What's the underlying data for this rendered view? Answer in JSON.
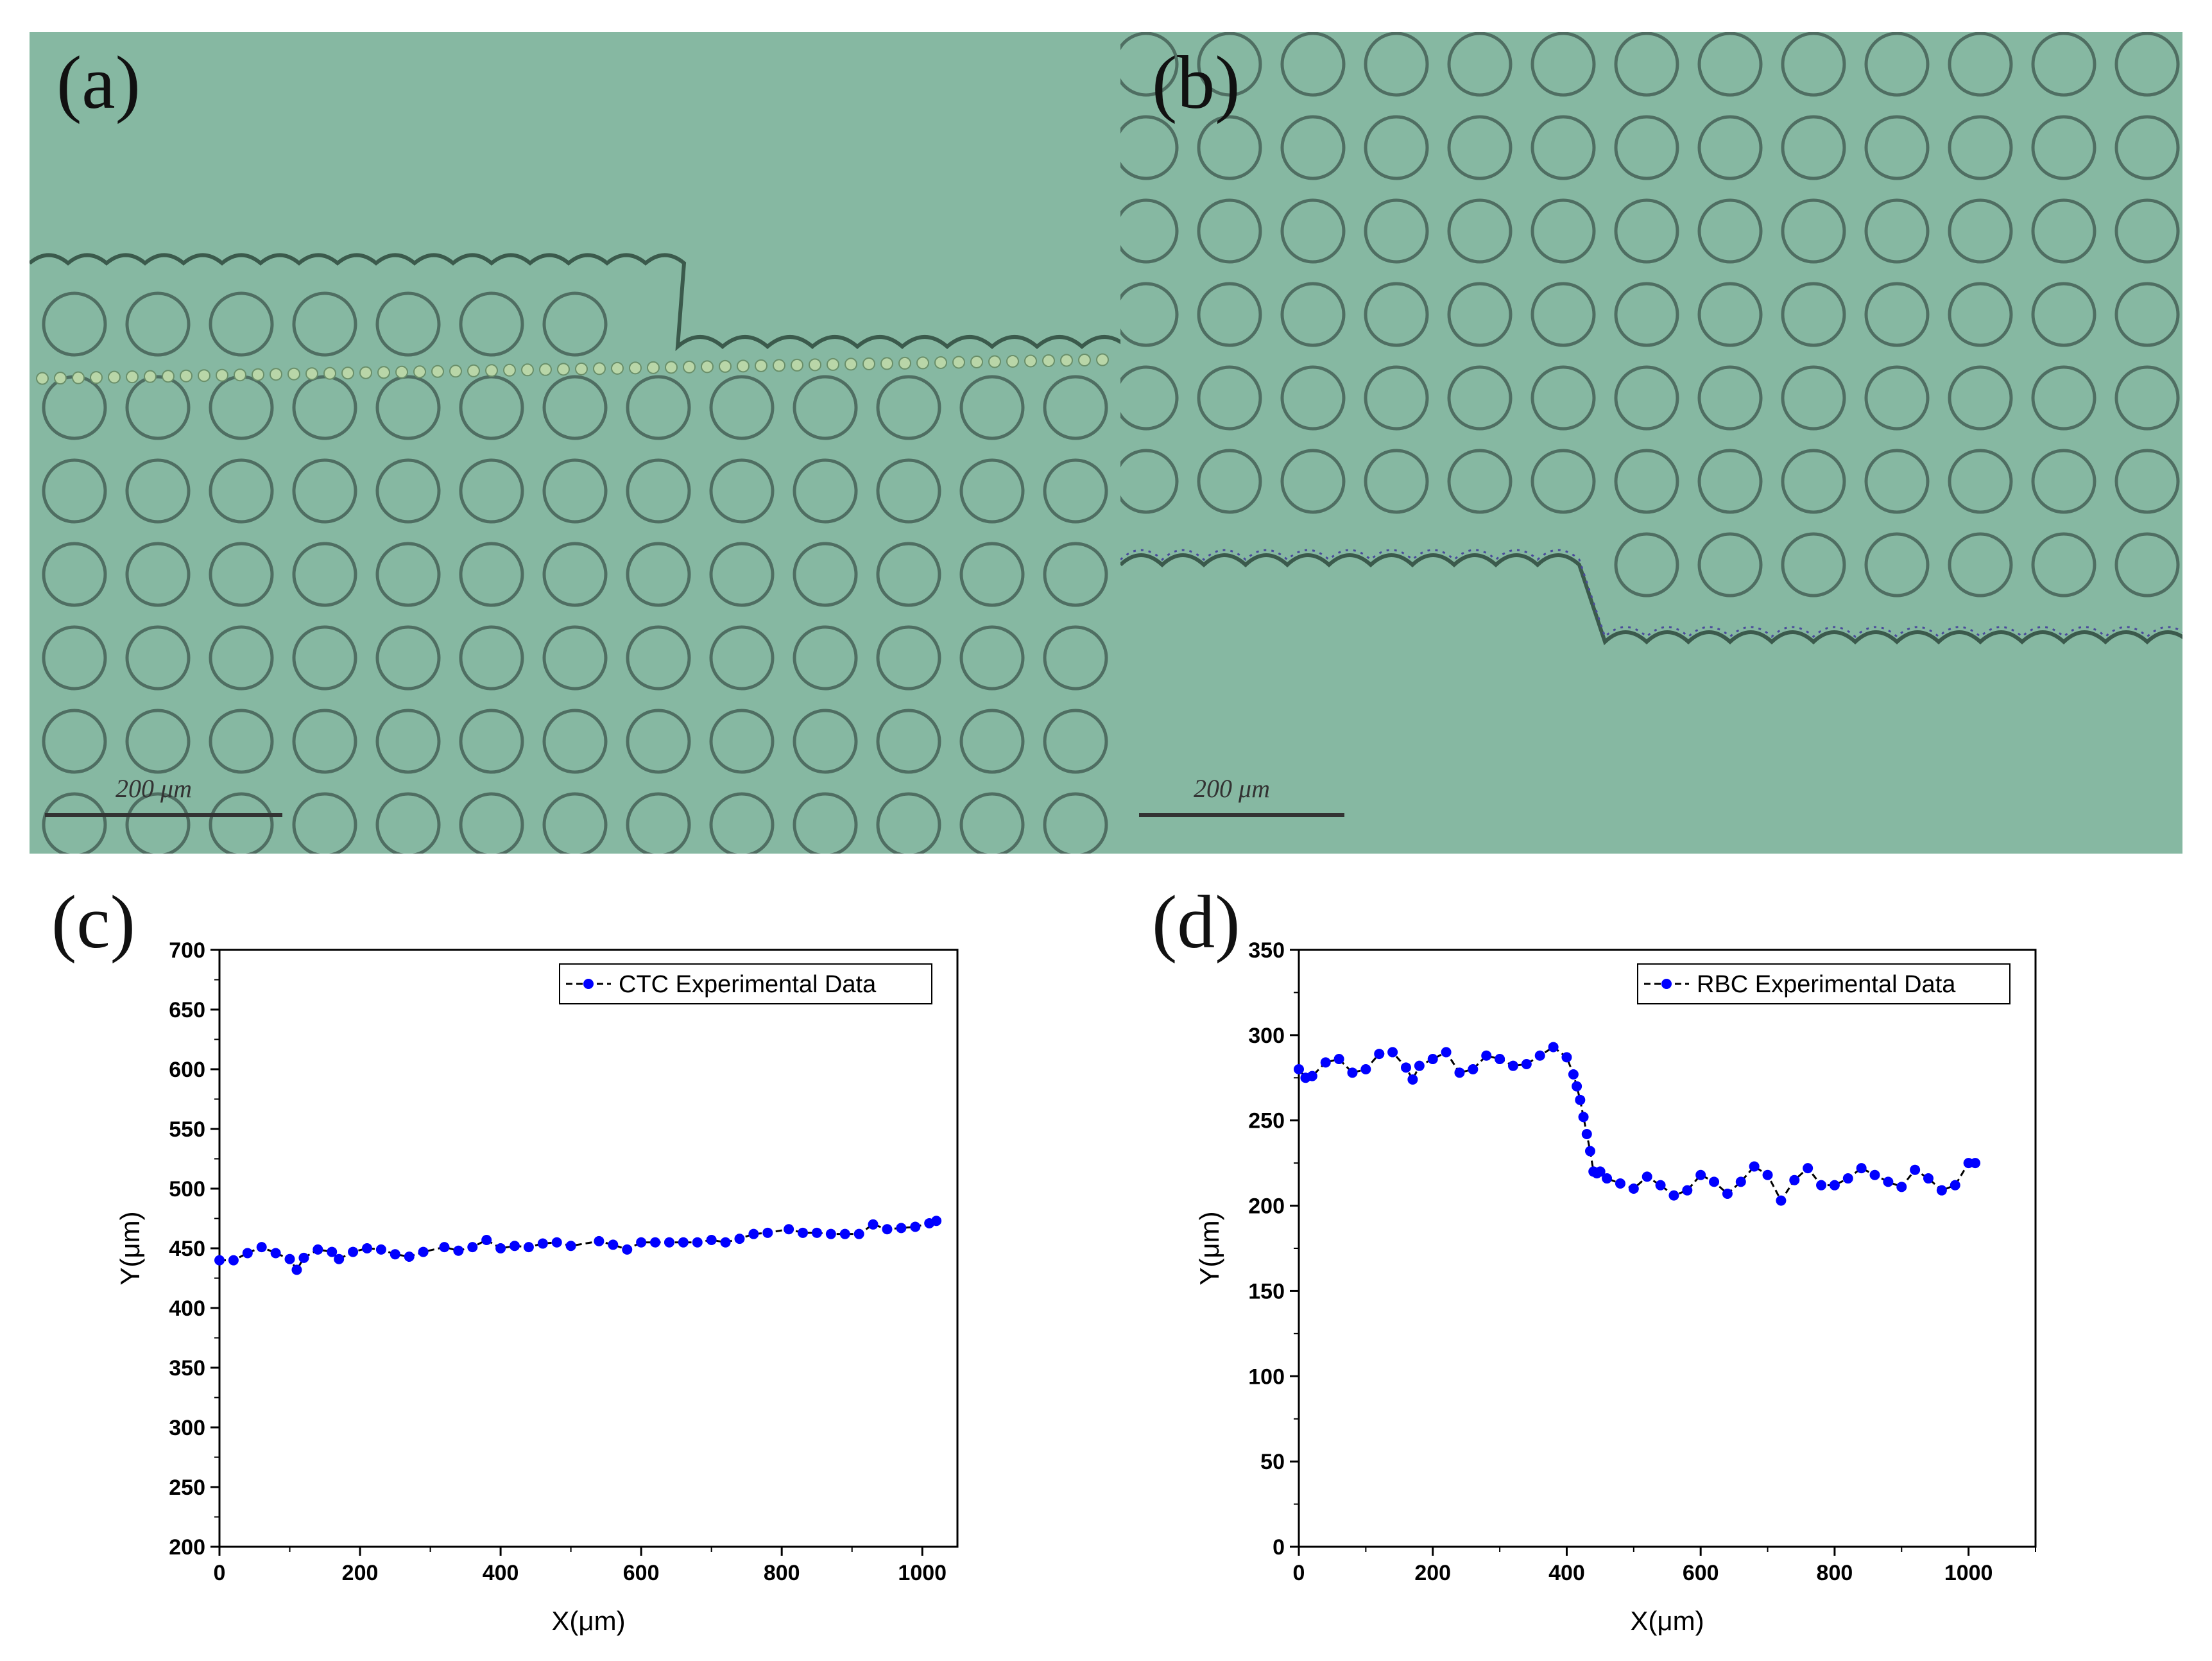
{
  "panels": {
    "a": {
      "label": "(a)",
      "scale_bar": "200 μm"
    },
    "b": {
      "label": "(b)",
      "scale_bar": "200 μm"
    },
    "c": {
      "label": "(c)"
    },
    "d": {
      "label": "(d)"
    }
  },
  "colors": {
    "micro_bg": "#86b8a2",
    "pillar": "#4f6e62",
    "series": "#0000ff",
    "line": "#000000"
  },
  "chart_data": [
    {
      "type": "line",
      "panel": "c",
      "title": "",
      "series": [
        {
          "name": "CTC Experimental Data",
          "x": [
            0,
            20,
            40,
            60,
            80,
            100,
            110,
            120,
            140,
            160,
            170,
            190,
            210,
            230,
            250,
            270,
            290,
            320,
            340,
            360,
            380,
            400,
            420,
            440,
            460,
            480,
            500,
            540,
            560,
            580,
            600,
            620,
            640,
            660,
            680,
            700,
            720,
            740,
            760,
            780,
            810,
            830,
            850,
            870,
            890,
            910,
            930,
            950,
            970,
            990,
            1010,
            1020
          ],
          "y": [
            440,
            440,
            446,
            451,
            446,
            441,
            432,
            442,
            449,
            447,
            441,
            447,
            450,
            449,
            445,
            443,
            447,
            451,
            448,
            451,
            457,
            450,
            452,
            451,
            454,
            455,
            452,
            456,
            453,
            449,
            455,
            455,
            455,
            455,
            455,
            457,
            455,
            458,
            462,
            463,
            466,
            463,
            463,
            462,
            462,
            462,
            470,
            466,
            467,
            468,
            471,
            473
          ]
        }
      ],
      "xlabel": "X(μm)",
      "ylabel": "Y(μm)",
      "xlim": [
        0,
        1050
      ],
      "ylim": [
        200,
        700
      ],
      "xticks": [
        0,
        200,
        400,
        600,
        800,
        1000
      ],
      "yticks": [
        200,
        250,
        300,
        350,
        400,
        450,
        500,
        550,
        600,
        650,
        700
      ],
      "legend_position": "top-right"
    },
    {
      "type": "line",
      "panel": "d",
      "title": "",
      "series": [
        {
          "name": "RBC Experimental Data",
          "x": [
            0,
            10,
            20,
            40,
            60,
            80,
            100,
            120,
            140,
            160,
            170,
            180,
            200,
            220,
            240,
            260,
            280,
            300,
            320,
            340,
            360,
            380,
            400,
            410,
            415,
            420,
            425,
            430,
            435,
            440,
            445,
            450,
            460,
            480,
            500,
            520,
            540,
            560,
            580,
            600,
            620,
            640,
            660,
            680,
            700,
            720,
            740,
            760,
            780,
            800,
            820,
            840,
            860,
            880,
            900,
            920,
            940,
            960,
            980,
            1000,
            1010
          ],
          "y": [
            280,
            275,
            276,
            284,
            286,
            278,
            280,
            289,
            290,
            281,
            274,
            282,
            286,
            290,
            278,
            280,
            288,
            286,
            282,
            283,
            288,
            293,
            287,
            277,
            270,
            262,
            252,
            242,
            232,
            220,
            219,
            220,
            216,
            213,
            210,
            217,
            212,
            206,
            209,
            218,
            214,
            207,
            214,
            223,
            218,
            203,
            215,
            222,
            212,
            212,
            216,
            222,
            218,
            214,
            211,
            221,
            216,
            209,
            212,
            225,
            225
          ]
        }
      ],
      "xlabel": "X(μm)",
      "ylabel": "Y(μm)",
      "xlim": [
        0,
        1100
      ],
      "ylim": [
        0,
        350
      ],
      "xticks": [
        0,
        200,
        400,
        600,
        800,
        1000
      ],
      "yticks": [
        0,
        50,
        100,
        150,
        200,
        250,
        300,
        350
      ],
      "legend_position": "top-right"
    }
  ]
}
